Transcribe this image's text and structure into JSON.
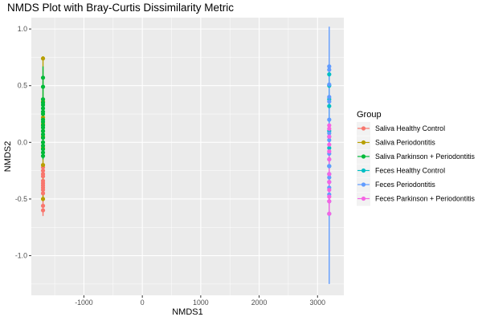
{
  "chart_data": {
    "type": "scatter",
    "title": "NMDS Plot with Bray-Curtis Dissimilarity Metric",
    "xlabel": "NMDS1",
    "ylabel": "NMDS2",
    "xlim": [
      -1900,
      3450
    ],
    "ylim": [
      -1.35,
      1.1
    ],
    "x_ticks": [
      -1000,
      0,
      1000,
      2000,
      3000
    ],
    "x_tick_labels": [
      "-1000",
      "0",
      "1000",
      "2000",
      "3000"
    ],
    "y_ticks": [
      -1.0,
      -0.5,
      0.0,
      0.5,
      1.0
    ],
    "y_tick_labels": [
      "-1.0",
      "-0.5",
      "0.0",
      "0.5",
      "1.0"
    ],
    "grid": true,
    "legend_position": "right",
    "legend_title": "Group",
    "series": [
      {
        "name": "Saliva Healthy Control",
        "color": "#F8766D",
        "x": -1700,
        "y": [
          -0.6,
          -0.56,
          -0.45,
          -0.42,
          -0.4,
          -0.38,
          -0.36,
          -0.34,
          -0.3,
          -0.28,
          -0.25,
          -0.22
        ],
        "range": [
          -0.65,
          -0.2
        ]
      },
      {
        "name": "Saliva Periodontitis",
        "color": "#B79F00",
        "x": -1700,
        "y": [
          0.74,
          0.36,
          0.22,
          0.16,
          0.1,
          0.05,
          -0.05,
          -0.2,
          -0.5
        ],
        "range": [
          -0.52,
          0.76
        ]
      },
      {
        "name": "Saliva Parkinson + Periodontitis",
        "color": "#00BA38",
        "x": -1700,
        "y": [
          0.57,
          0.49,
          0.38,
          0.35,
          0.33,
          0.3,
          0.27,
          0.25,
          0.2,
          0.18,
          0.15,
          0.13,
          0.1,
          0.07,
          0.04,
          0.0,
          -0.03,
          -0.06,
          -0.09,
          -0.12
        ],
        "range": [
          -0.15,
          0.67
        ]
      },
      {
        "name": "Feces Healthy Control",
        "color": "#00BFC4",
        "x": 3200,
        "y": [
          0.6,
          0.5,
          0.38,
          0.32,
          0.1,
          0.05,
          -0.05,
          -0.21
        ],
        "range": [
          -0.22,
          0.62
        ]
      },
      {
        "name": "Feces Periodontitis",
        "color": "#619CFF",
        "x": 3200,
        "y": [
          0.67,
          0.64,
          0.51,
          0.4,
          0.36,
          0.2,
          0.08,
          0.02,
          -0.1,
          -0.15,
          -0.21,
          -0.28,
          -0.31,
          -0.35,
          -0.4,
          -0.46,
          -0.52,
          -0.63
        ],
        "range": [
          -1.25,
          1.02
        ]
      },
      {
        "name": "Feces Parkinson + Periodontitis",
        "color": "#F564E3",
        "x": 3200,
        "y": [
          0.15,
          0.12,
          0.05,
          -0.02,
          -0.08,
          -0.15,
          -0.28,
          -0.35,
          -0.42,
          -0.48,
          -0.52,
          -0.63
        ],
        "range": [
          -0.64,
          0.16
        ]
      }
    ]
  }
}
